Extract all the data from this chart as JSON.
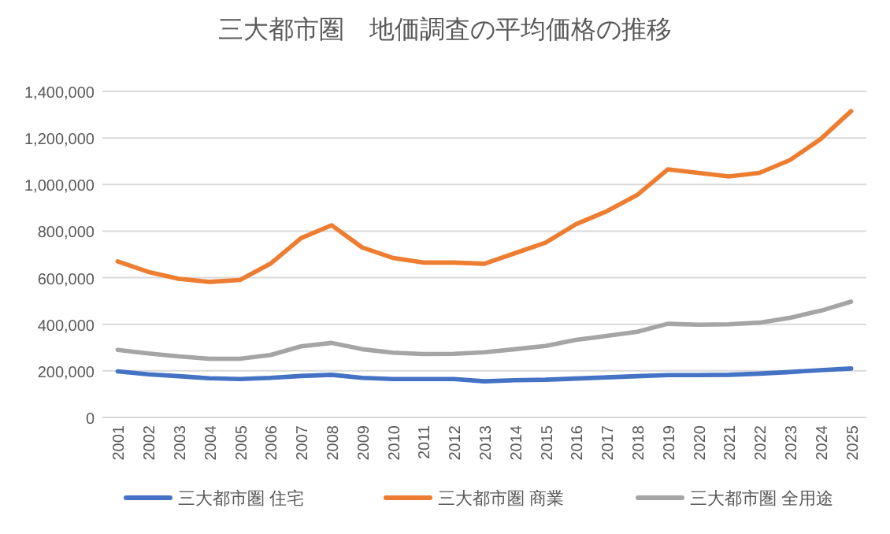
{
  "chart_data": {
    "type": "line",
    "title": "三大都市圏　地価調査の平均価格の推移",
    "categories": [
      "2001",
      "2002",
      "2003",
      "2004",
      "2005",
      "2006",
      "2007",
      "2008",
      "2009",
      "2010",
      "2011",
      "2012",
      "2013",
      "2014",
      "2015",
      "2016",
      "2017",
      "2018",
      "2019",
      "2020",
      "2021",
      "2022",
      "2023",
      "2024",
      "2025"
    ],
    "series": [
      {
        "name": "三大都市圏 住宅",
        "color": "#4472c4",
        "values": [
          198000,
          185000,
          177000,
          168000,
          165000,
          170000,
          178000,
          183000,
          170000,
          165000,
          165000,
          165000,
          155000,
          160000,
          162000,
          167000,
          172000,
          177000,
          182000,
          182000,
          183000,
          188000,
          195000,
          203000,
          210000
        ]
      },
      {
        "name": "三大都市圏 商業",
        "color": "#ed7d31",
        "values": [
          670000,
          625000,
          595000,
          582000,
          590000,
          660000,
          770000,
          825000,
          730000,
          685000,
          665000,
          665000,
          660000,
          705000,
          750000,
          830000,
          885000,
          955000,
          1065000,
          1050000,
          1035000,
          1050000,
          1105000,
          1195000,
          1315000
        ]
      },
      {
        "name": "三大都市圏 全用途",
        "color": "#a5a5a5",
        "values": [
          290000,
          275000,
          262000,
          252000,
          252000,
          268000,
          305000,
          320000,
          293000,
          278000,
          272000,
          273000,
          280000,
          293000,
          307000,
          333000,
          350000,
          368000,
          402000,
          398000,
          400000,
          407000,
          428000,
          458000,
          497000
        ]
      }
    ],
    "ylim": [
      0,
      1400000
    ],
    "yticks": [
      {
        "value": 0,
        "label": "0"
      },
      {
        "value": 200000,
        "label": "200,000"
      },
      {
        "value": 400000,
        "label": "400,000"
      },
      {
        "value": 600000,
        "label": "600,000"
      },
      {
        "value": 800000,
        "label": "800,000"
      },
      {
        "value": 1000000,
        "label": "1,000,000"
      },
      {
        "value": 1200000,
        "label": "1,200,000"
      },
      {
        "value": 1400000,
        "label": "1,400,000"
      }
    ],
    "grid": "y",
    "legend": "bottom",
    "marker": "none",
    "line_style": "solid"
  }
}
